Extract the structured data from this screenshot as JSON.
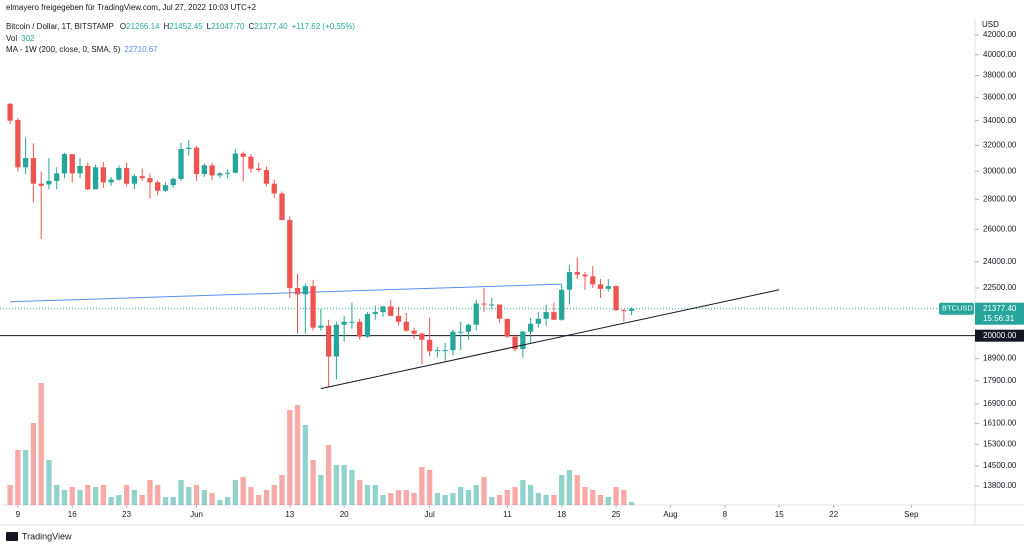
{
  "chart_data": {
    "type": "candlestick",
    "attribution": "elmayero freigegeben für TradingView.com, Jul 27, 2022 10:03 UTC+2",
    "symbol_title": "Bitcoin / Dollar, 1T, BITSTAMP",
    "legend_ohlc": [
      {
        "key": "O",
        "value": 21266.14,
        "label": "21266.14"
      },
      {
        "key": "H",
        "value": 21452.45,
        "label": "21452.45"
      },
      {
        "key": "L",
        "value": 21047.7,
        "label": "21047.70"
      },
      {
        "key": "C",
        "value": 21377.4,
        "label": "21377.40"
      }
    ],
    "change_label": "+117.62 (+0.55%)",
    "volume_title": "Vol",
    "ma_title": "MA - 1W (200, close, 0, SMA, 5)",
    "ma": {
      "x": [
        0,
        71
      ],
      "values": [
        21750,
        22710.67
      ],
      "label": "22710.67",
      "color": "#5b8def"
    },
    "currency": "USD",
    "footer": "TradingView",
    "up_color": "#26a69a",
    "down_color": "#ef5350",
    "log_scale": true,
    "grid": false,
    "xlim": [
      -1.3,
      124.2
    ],
    "ylim": [
      13170,
      43800
    ],
    "volume_lim": [
      0,
      15000
    ],
    "xticks": [
      {
        "value": 1,
        "label": "9"
      },
      {
        "value": 8,
        "label": "16"
      },
      {
        "value": 15,
        "label": "23"
      },
      {
        "value": 24,
        "label": "Jun"
      },
      {
        "value": 36,
        "label": "13"
      },
      {
        "value": 43,
        "label": "20"
      },
      {
        "value": 54,
        "label": "Jul"
      },
      {
        "value": 64,
        "label": "11"
      },
      {
        "value": 71,
        "label": "18"
      },
      {
        "value": 78,
        "label": "25"
      },
      {
        "value": 85,
        "label": "Aug"
      },
      {
        "value": 92,
        "label": "8"
      },
      {
        "value": 99,
        "label": "15"
      },
      {
        "value": 106,
        "label": "22"
      },
      {
        "value": 116,
        "label": "Sep"
      }
    ],
    "yticks": [
      {
        "value": 42000,
        "label": "42000.00"
      },
      {
        "value": 40000,
        "label": "40000.00"
      },
      {
        "value": 38000,
        "label": "38000.00"
      },
      {
        "value": 36000,
        "label": "36000.00"
      },
      {
        "value": 34000,
        "label": "34000.00"
      },
      {
        "value": 32000,
        "label": "32000.00"
      },
      {
        "value": 30000,
        "label": "30000.00"
      },
      {
        "value": 28000,
        "label": "28000.00"
      },
      {
        "value": 26000,
        "label": "26000.00"
      },
      {
        "value": 24000,
        "label": "24000.00"
      },
      {
        "value": 22500,
        "label": "22500.00"
      },
      {
        "value": 18900,
        "label": "18900.00"
      },
      {
        "value": 17900,
        "label": "17900.00"
      },
      {
        "value": 16900,
        "label": "16900.00"
      },
      {
        "value": 16100,
        "label": "16100.00"
      },
      {
        "value": 15300,
        "label": "15300.00"
      },
      {
        "value": 14500,
        "label": "14500.00"
      },
      {
        "value": 13800,
        "label": "13800.00"
      }
    ],
    "hline": {
      "value": 20000,
      "label": "20000.00"
    },
    "trendline": {
      "x": [
        40,
        99
      ],
      "y": [
        17550,
        22400
      ]
    },
    "price_label": {
      "name": "BTCUSD",
      "value": 21377.4,
      "label": "21377.40",
      "countdown": "15:56:31"
    },
    "open": [
      35450,
      34060,
      30300,
      31000,
      29100,
      29050,
      29300,
      29850,
      31300,
      29850,
      30400,
      28700,
      30300,
      29200,
      29400,
      30250,
      29100,
      29650,
      29500,
      29200,
      28600,
      29000,
      29450,
      31700,
      31800,
      29800,
      30450,
      29700,
      29850,
      29900,
      31350,
      31100,
      30200,
      30100,
      29100,
      28400,
      26600,
      22500,
      22150,
      22600,
      20400,
      20500,
      19000,
      20550,
      20700,
      20700,
      19950,
      21100,
      21200,
      21500,
      21000,
      20700,
      20250,
      20100,
      19800,
      19250,
      19300,
      19300,
      20200,
      20200,
      20550,
      21650,
      21600,
      21600,
      20850,
      19950,
      19350,
      20200,
      20600,
      20850,
      21200,
      20800,
      22400,
      23400,
      23250,
      23150,
      22700,
      22450,
      22600,
      21300,
      21266.14
    ],
    "high": [
      35500,
      34240,
      32600,
      32150,
      30000,
      31000,
      30300,
      31400,
      31300,
      31000,
      30650,
      30500,
      30700,
      29600,
      30450,
      30650,
      29800,
      30200,
      29850,
      29350,
      29200,
      29550,
      32200,
      32400,
      31950,
      30600,
      30650,
      29950,
      30150,
      31700,
      31500,
      31300,
      30650,
      30350,
      29400,
      28550,
      26850,
      23300,
      22750,
      22950,
      21350,
      20800,
      20700,
      21000,
      21700,
      20850,
      21200,
      21550,
      21500,
      21850,
      21500,
      21150,
      20400,
      20150,
      20900,
      19450,
      19650,
      20300,
      20700,
      20600,
      21850,
      22500,
      21950,
      21600,
      20850,
      20050,
      20250,
      20900,
      21200,
      21600,
      21700,
      22700,
      23800,
      24250,
      23400,
      23750,
      23000,
      23000,
      22650,
      21350,
      21452.45
    ],
    "low": [
      33700,
      30000,
      29800,
      27800,
      25400,
      28700,
      28700,
      29500,
      29200,
      29500,
      28650,
      28700,
      28800,
      28950,
      29300,
      28900,
      28700,
      29300,
      28050,
      28300,
      28500,
      28800,
      29300,
      31200,
      29300,
      29600,
      29350,
      29500,
      29500,
      29850,
      29250,
      29900,
      29950,
      28900,
      28100,
      26600,
      21950,
      20100,
      20100,
      20250,
      20250,
      17600,
      17950,
      19700,
      20350,
      19800,
      19900,
      20800,
      20950,
      21000,
      20500,
      20200,
      19850,
      18650,
      19000,
      18950,
      18800,
      19050,
      19300,
      19800,
      20250,
      21200,
      21350,
      20650,
      19900,
      19250,
      18950,
      19650,
      20400,
      20500,
      20800,
      20750,
      21600,
      23000,
      22400,
      22500,
      21950,
      22300,
      21250,
      20700,
      21047.7
    ],
    "close": [
      34000,
      30300,
      31000,
      29100,
      28950,
      29300,
      29850,
      31300,
      29850,
      30400,
      28700,
      30300,
      29200,
      29400,
      30250,
      29100,
      29650,
      29500,
      29200,
      28600,
      29000,
      29450,
      31700,
      31800,
      29800,
      30450,
      29700,
      29850,
      29900,
      31350,
      31100,
      30200,
      30100,
      29100,
      28400,
      26600,
      22500,
      22150,
      22600,
      20400,
      20500,
      19000,
      20550,
      20700,
      20700,
      19950,
      21100,
      21200,
      21500,
      21000,
      20700,
      20250,
      20100,
      19800,
      19250,
      19300,
      19300,
      20200,
      20200,
      20550,
      21650,
      21600,
      21600,
      20850,
      19950,
      19350,
      20200,
      20600,
      20850,
      21200,
      20800,
      22400,
      23400,
      23250,
      23150,
      22700,
      22450,
      22600,
      21300,
      21250,
      21377.4
    ],
    "volume": [
      2000,
      5500,
      5500,
      8200,
      12200,
      4500,
      2000,
      1500,
      1800,
      1500,
      2000,
      1800,
      2000,
      800,
      1000,
      2000,
      1500,
      1000,
      2500,
      2000,
      800,
      800,
      2500,
      1800,
      2000,
      1500,
      1200,
      500,
      800,
      2500,
      2800,
      1800,
      1000,
      1500,
      2000,
      3000,
      9500,
      10000,
      8000,
      4500,
      3000,
      6000,
      4000,
      4000,
      3500,
      2500,
      2000,
      2000,
      1000,
      1200,
      1500,
      1500,
      1200,
      3800,
      3500,
      1200,
      1000,
      1200,
      1800,
      1500,
      2000,
      2800,
      800,
      1000,
      1500,
      1800,
      2500,
      2000,
      1200,
      1000,
      1000,
      3000,
      3500,
      3000,
      1800,
      1500,
      1000,
      800,
      1800,
      1500,
      302
    ]
  }
}
